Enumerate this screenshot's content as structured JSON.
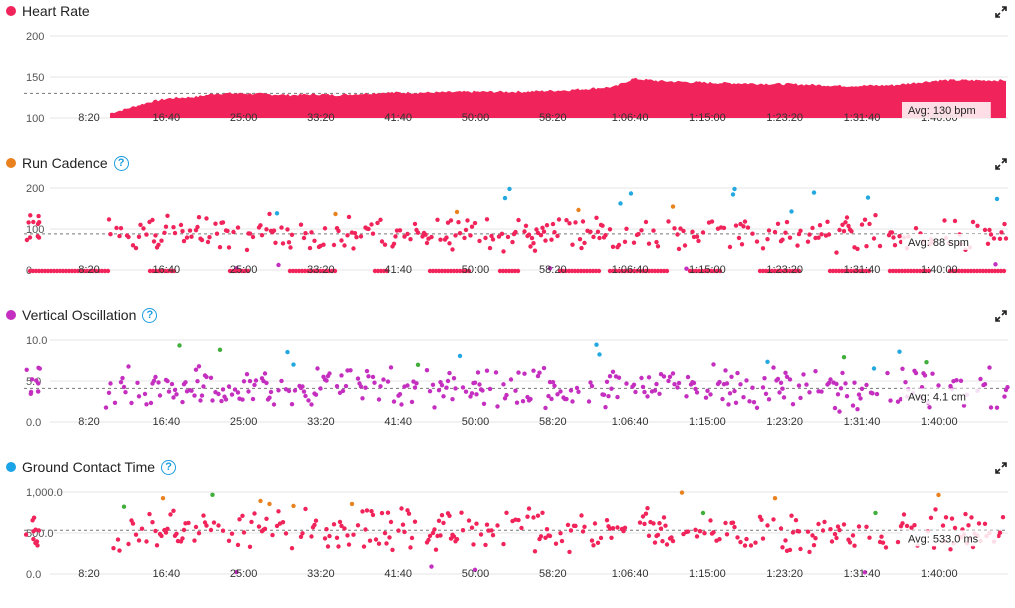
{
  "colors": {
    "hr": "#f0245a",
    "cadence": "#e9821e",
    "vo": "#c42fbf",
    "gct": "#1aa3e6",
    "green": "#3fae3a",
    "blue": "#23a8e0",
    "orange": "#e9821e",
    "purple": "#c42fbf",
    "red": "#f0245a"
  },
  "x_ticks": [
    "8:20",
    "16:40",
    "25:00",
    "33:20",
    "41:40",
    "50:00",
    "58:20",
    "1:06:40",
    "1:15:00",
    "1:23:20",
    "1:31:40",
    "1:40:00"
  ],
  "panels": [
    {
      "id": "hr",
      "title": "Heart Rate",
      "help": false,
      "icon": "expand-icon",
      "avg_label": "Avg: 130 bpm"
    },
    {
      "id": "cadence",
      "title": "Run Cadence",
      "help": true,
      "icon": "expand-icon",
      "avg_label": "Avg: 88 spm"
    },
    {
      "id": "vo",
      "title": "Vertical Oscillation",
      "help": true,
      "icon": "expand-icon",
      "avg_label": "Avg: 4.1 cm"
    },
    {
      "id": "gct",
      "title": "Ground Contact Time",
      "help": true,
      "icon": "expand-icon",
      "avg_label": "Avg: 533.0 ms"
    }
  ],
  "chart_data": [
    {
      "type": "area",
      "title": "Heart Rate",
      "series_color": "#f0245a",
      "y_ticks": [
        "200",
        "150",
        "100"
      ],
      "ylim": [
        100,
        200
      ],
      "avg": 130,
      "x_minutes": [
        0,
        5,
        8,
        10,
        12,
        15,
        17,
        20,
        22,
        25,
        30,
        33,
        35,
        40,
        45,
        50,
        55,
        60,
        65,
        67,
        70,
        75,
        80,
        85,
        90,
        95,
        100
      ],
      "values": [
        100,
        100,
        100,
        104,
        110,
        120,
        124,
        126,
        130,
        130,
        128,
        129,
        128,
        131,
        131,
        132,
        132,
        134,
        138,
        148,
        145,
        143,
        142,
        141,
        139,
        140,
        146
      ]
    },
    {
      "type": "scatter",
      "title": "Run Cadence",
      "y_ticks": [
        "200",
        "100",
        "0"
      ],
      "ylim": [
        0,
        200
      ],
      "avg": 88
    },
    {
      "type": "scatter",
      "title": "Vertical Oscillation",
      "y_ticks": [
        "10.0",
        "5.0",
        "0.0"
      ],
      "ylim": [
        0,
        10
      ],
      "avg": 4.1
    },
    {
      "type": "scatter",
      "title": "Ground Contact Time",
      "y_ticks": [
        "1,000.0",
        "500.0",
        "0.0"
      ],
      "ylim": [
        0,
        1000
      ],
      "avg": 533.0
    }
  ]
}
